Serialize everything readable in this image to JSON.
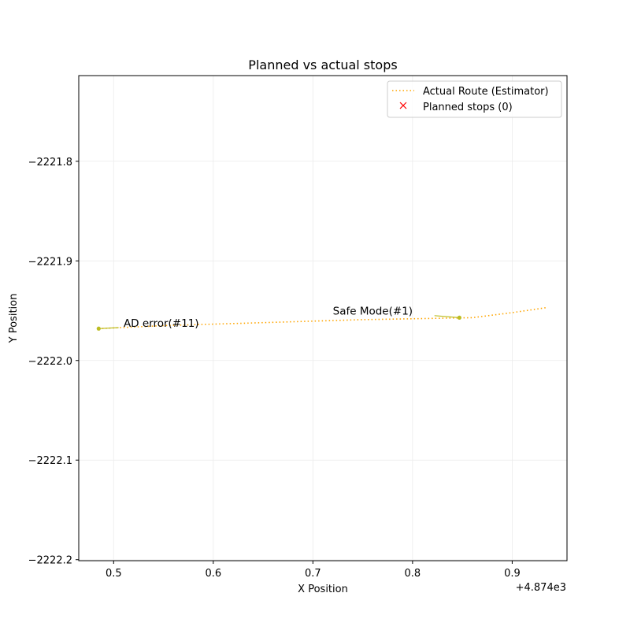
{
  "chart_data": {
    "type": "line",
    "title": "Planned vs actual stops",
    "xlabel": "X Position",
    "ylabel": "Y Position",
    "x_offset_label": "+4.874e3",
    "xlim": [
      0.465,
      0.955
    ],
    "ylim": [
      -2222.201,
      -2221.714
    ],
    "grid": true,
    "legend_position": "upper right",
    "x_ticks": [
      0.5,
      0.6,
      0.7,
      0.8,
      0.9
    ],
    "y_ticks": [
      -2221.8,
      -2221.9,
      -2222.0,
      -2222.1,
      -2222.2
    ],
    "x_tick_labels": [
      "0.5",
      "0.6",
      "0.7",
      "0.8",
      "0.9"
    ],
    "y_tick_labels": [
      "−2221.8",
      "−2221.9",
      "−2222.0",
      "−2222.1",
      "−2222.2"
    ],
    "series": [
      {
        "name": "Actual Route (Estimator)",
        "style": "dotted",
        "color": "#ffa500",
        "x": [
          0.485,
          0.55,
          0.65,
          0.75,
          0.86,
          0.9,
          0.934
        ],
        "y": [
          -2221.968,
          -2221.965,
          -2221.962,
          -2221.959,
          -2221.957,
          -2221.952,
          -2221.947
        ]
      },
      {
        "name": "Planned stops (0)",
        "marker": "x",
        "color": "#ff0000",
        "x": [],
        "y": []
      }
    ],
    "annotations": [
      {
        "text": "AD error(#11)",
        "point": [
          0.485,
          -2221.968
        ],
        "text_position": [
          0.51,
          -2221.966
        ],
        "arrow_start": [
          0.505,
          -2221.967
        ]
      },
      {
        "text": "Safe Mode(#1)",
        "point": [
          0.847,
          -2221.957
        ],
        "text_position": [
          0.72,
          -2221.954
        ],
        "arrow_start": [
          0.822,
          -2221.955
        ]
      }
    ],
    "annotation_color": "#bcbd22"
  }
}
